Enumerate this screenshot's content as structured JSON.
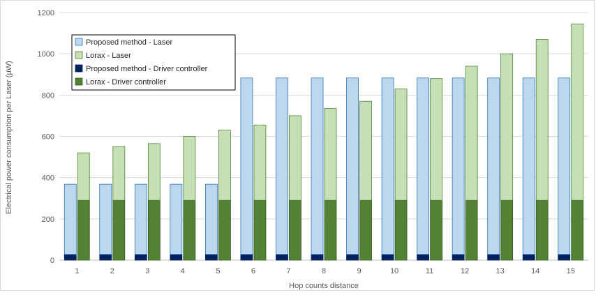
{
  "chart_data": {
    "type": "bar",
    "xlabel": "Hop counts distance",
    "ylabel": "Electrical power consumption per Laser (µW)",
    "ylim": [
      0,
      1200
    ],
    "yticks": [
      0,
      200,
      400,
      600,
      800,
      1000,
      1200
    ],
    "categories": [
      "1",
      "2",
      "3",
      "4",
      "5",
      "6",
      "7",
      "8",
      "9",
      "10",
      "11",
      "12",
      "13",
      "14",
      "15"
    ],
    "grid": true,
    "legend_position": "top-left",
    "stacking": "each method stacks Driver controller (bottom) + Laser (top); two stacks per category",
    "series": [
      {
        "name": "Proposed method - Laser",
        "stack": "proposed",
        "color": "#BDD7EE",
        "border": "#2E75B6",
        "values": [
          340,
          340,
          340,
          340,
          340,
          855,
          855,
          855,
          855,
          855,
          855,
          855,
          855,
          855,
          855
        ]
      },
      {
        "name": "Lorax - Laser",
        "stack": "lorax",
        "color": "#C5E0B4",
        "border": "#548235",
        "values": [
          230,
          260,
          275,
          310,
          340,
          365,
          410,
          445,
          480,
          540,
          590,
          650,
          710,
          780,
          855
        ]
      },
      {
        "name": "Proposed method - Driver controller",
        "stack": "proposed",
        "color": "#002060",
        "border": "#002060",
        "values": [
          28,
          28,
          28,
          28,
          28,
          28,
          28,
          28,
          28,
          28,
          28,
          28,
          28,
          28,
          28
        ]
      },
      {
        "name": "Lorax - Driver controller",
        "stack": "lorax",
        "color": "#548235",
        "border": "#385723",
        "values": [
          290,
          290,
          290,
          290,
          290,
          290,
          290,
          290,
          290,
          290,
          290,
          290,
          290,
          290,
          290
        ]
      }
    ]
  }
}
